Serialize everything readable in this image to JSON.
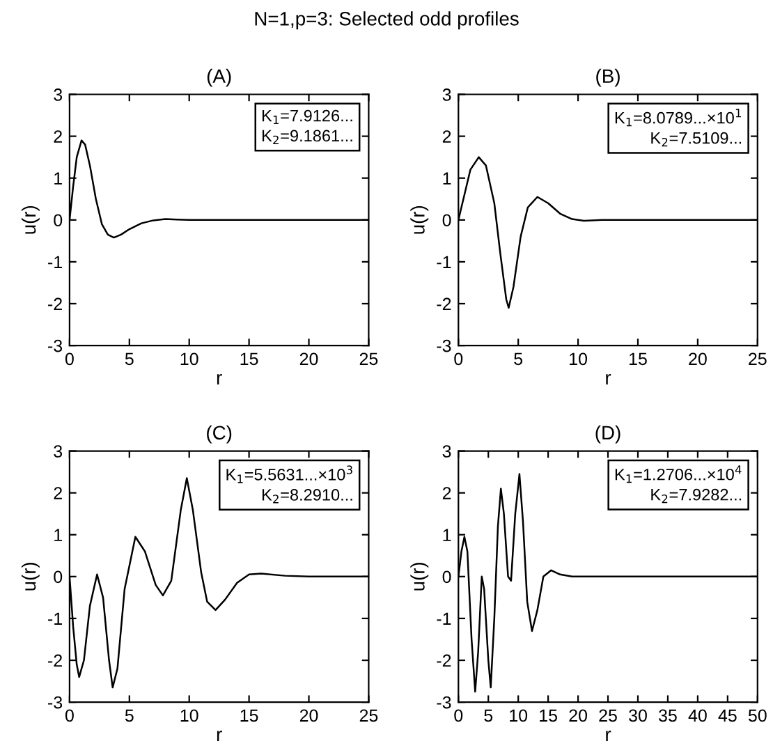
{
  "chart_data": [
    {
      "type": "other",
      "title": "N=1,p=3: Selected odd profiles"
    },
    {
      "type": "line",
      "title": "(A)",
      "xlabel": "r",
      "ylabel": "u(r)",
      "xlim": [
        0,
        25
      ],
      "xticks": [
        0,
        5,
        10,
        15,
        20,
        25
      ],
      "ylim": [
        -3,
        3
      ],
      "yticks": [
        -3,
        -2,
        -1,
        0,
        1,
        2,
        3
      ],
      "annotations": [
        "K$_{1}$=7.9126...",
        "K$_{2}$=9.1861..."
      ],
      "series": [
        {
          "color": "#000000",
          "x": [
            0,
            0.3,
            0.6,
            1,
            1.3,
            1.7,
            2.2,
            2.7,
            3.2,
            3.7,
            4.3,
            5,
            6,
            7,
            8,
            9,
            10,
            25
          ],
          "values": [
            0,
            0.8,
            1.5,
            1.9,
            1.8,
            1.3,
            0.5,
            -0.1,
            -0.35,
            -0.42,
            -0.35,
            -0.22,
            -0.08,
            -0.01,
            0.02,
            0.01,
            0,
            0
          ]
        }
      ]
    },
    {
      "type": "line",
      "title": "(B)",
      "xlabel": "r",
      "ylabel": "u(r)",
      "xlim": [
        0,
        25
      ],
      "xticks": [
        0,
        5,
        10,
        15,
        20,
        25
      ],
      "ylim": [
        -3,
        3
      ],
      "yticks": [
        -3,
        -2,
        -1,
        0,
        1,
        2,
        3
      ],
      "annotations": [
        "K$_{1}$=8.0789...×10$^{1}$",
        "K$_{2}$=7.5109..."
      ],
      "series": [
        {
          "color": "#000000",
          "x": [
            0,
            0.5,
            1,
            1.7,
            2.3,
            3,
            3.5,
            4,
            4.2,
            4.6,
            5.2,
            5.8,
            6.6,
            7.5,
            8.5,
            9.5,
            10.5,
            12,
            25
          ],
          "values": [
            0,
            0.6,
            1.2,
            1.5,
            1.3,
            0.4,
            -0.8,
            -1.9,
            -2.1,
            -1.6,
            -0.4,
            0.3,
            0.55,
            0.4,
            0.15,
            0.02,
            -0.02,
            0,
            0
          ]
        }
      ]
    },
    {
      "type": "line",
      "title": "(C)",
      "xlabel": "r",
      "ylabel": "u(r)",
      "xlim": [
        0,
        25
      ],
      "xticks": [
        0,
        5,
        10,
        15,
        20,
        25
      ],
      "ylim": [
        -3,
        3
      ],
      "yticks": [
        -3,
        -2,
        -1,
        0,
        1,
        2,
        3
      ],
      "annotations": [
        "K$_{1}$=5.5631...×10$^{3}$",
        "K$_{2}$=8.2910..."
      ],
      "series": [
        {
          "color": "#000000",
          "x": [
            0,
            0.3,
            0.6,
            0.8,
            1.2,
            1.7,
            2.3,
            2.8,
            3.3,
            3.6,
            4,
            4.6,
            5.5,
            6.3,
            7.2,
            7.8,
            8.5,
            9.3,
            9.8,
            10.3,
            11,
            11.5,
            12.2,
            13,
            14,
            15,
            16,
            18,
            20,
            25
          ],
          "values": [
            0,
            -1.2,
            -2.1,
            -2.4,
            -2.0,
            -0.7,
            0.05,
            -0.5,
            -2.0,
            -2.65,
            -2.2,
            -0.3,
            0.95,
            0.6,
            -0.2,
            -0.45,
            -0.1,
            1.6,
            2.35,
            1.6,
            0.1,
            -0.6,
            -0.8,
            -0.55,
            -0.15,
            0.05,
            0.07,
            0.02,
            0,
            0
          ]
        }
      ]
    },
    {
      "type": "line",
      "title": "(D)",
      "xlabel": "r",
      "ylabel": "u(r)",
      "xlim": [
        0,
        50
      ],
      "xticks": [
        0,
        5,
        10,
        15,
        20,
        25,
        30,
        35,
        40,
        45,
        50
      ],
      "ylim": [
        -3,
        3
      ],
      "yticks": [
        -3,
        -2,
        -1,
        0,
        1,
        2,
        3
      ],
      "annotations": [
        "K$_{1}$=1.2706...×10$^{4}$",
        "K$_{2}$=7.9282..."
      ],
      "series": [
        {
          "color": "#000000",
          "x": [
            0,
            0.5,
            1,
            1.5,
            2.2,
            2.8,
            3.3,
            3.9,
            4.3,
            5.0,
            5.4,
            6,
            6.6,
            7.1,
            7.6,
            8.3,
            8.8,
            9.5,
            10.2,
            10.8,
            11.5,
            12.3,
            13.2,
            14.2,
            15.5,
            17,
            19,
            50
          ],
          "values": [
            0,
            0.6,
            0.95,
            0.6,
            -1.5,
            -2.75,
            -1.8,
            0.0,
            -0.3,
            -2.0,
            -2.65,
            -1.0,
            1.2,
            2.1,
            1.5,
            0.0,
            -0.1,
            1.5,
            2.45,
            1.3,
            -0.6,
            -1.3,
            -0.8,
            0.0,
            0.15,
            0.05,
            0,
            0
          ]
        }
      ]
    }
  ]
}
